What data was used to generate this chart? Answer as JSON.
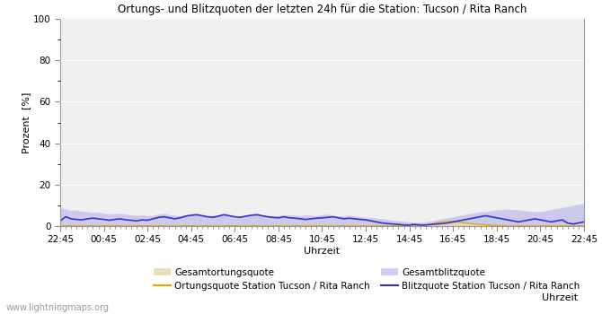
{
  "title": "Ortungs- und Blitzquoten der letzten 24h für die Station: Tucson / Rita Ranch",
  "xlabel": "Uhrzeit",
  "ylabel": "Prozent  [%]",
  "ylim": [
    0,
    100
  ],
  "yticks": [
    0,
    20,
    40,
    60,
    80,
    100
  ],
  "x_labels": [
    "22:45",
    "00:45",
    "02:45",
    "04:45",
    "06:45",
    "08:45",
    "10:45",
    "12:45",
    "14:45",
    "16:45",
    "18:45",
    "20:45",
    "22:45"
  ],
  "background_color": "#ffffff",
  "plot_bg_color": "#f0f0f0",
  "grid_color": "#ffffff",
  "watermark": "www.lightningmaps.org",
  "n_points": 97,
  "gesamtortungsquote": [
    0.2,
    0.2,
    0.2,
    0.2,
    0.2,
    0.2,
    0.2,
    0.2,
    0.2,
    0.2,
    0.2,
    0.2,
    0.2,
    0.2,
    0.2,
    0.2,
    0.2,
    0.2,
    0.2,
    0.2,
    0.2,
    0.2,
    0.2,
    0.2,
    0.2,
    0.2,
    0.2,
    0.2,
    0.2,
    0.2,
    0.2,
    0.2,
    0.2,
    0.2,
    0.2,
    0.2,
    0.2,
    0.2,
    0.2,
    0.2,
    0.2,
    0.2,
    0.2,
    0.2,
    0.2,
    0.2,
    0.2,
    0.2,
    0.2,
    0.2,
    0.2,
    0.2,
    0.2,
    0.2,
    0.2,
    0.2,
    0.2,
    0.2,
    0.2,
    0.2,
    0.2,
    0.2,
    0.2,
    0.2,
    0.2,
    0.2,
    0.2,
    0.5,
    1.2,
    1.8,
    2.2,
    2.5,
    2.5,
    2.2,
    1.8,
    1.5,
    1.2,
    1.0,
    0.8,
    0.6,
    0.4,
    0.3,
    0.2,
    0.2,
    0.2,
    0.2,
    0.2,
    0.2,
    0.2,
    0.2,
    0.2,
    0.2,
    0.2,
    0.2,
    0.2,
    0.2,
    0.2
  ],
  "ortungsquote_station": [
    0.1,
    0.1,
    0.1,
    0.1,
    0.1,
    0.1,
    0.1,
    0.1,
    0.1,
    0.1,
    0.1,
    0.1,
    0.1,
    0.1,
    0.1,
    0.1,
    0.1,
    0.1,
    0.1,
    0.1,
    0.1,
    0.1,
    0.1,
    0.1,
    0.1,
    0.1,
    0.1,
    0.1,
    0.1,
    0.1,
    0.1,
    0.1,
    0.1,
    0.1,
    0.1,
    0.1,
    0.1,
    0.1,
    0.1,
    0.1,
    0.1,
    0.1,
    0.1,
    0.1,
    0.1,
    0.1,
    0.1,
    0.1,
    0.1,
    0.1,
    0.1,
    0.1,
    0.1,
    0.1,
    0.1,
    0.1,
    0.1,
    0.1,
    0.1,
    0.1,
    0.1,
    0.1,
    0.1,
    0.1,
    0.1,
    0.1,
    0.1,
    0.4,
    1.0,
    1.5,
    1.9,
    2.2,
    2.2,
    2.0,
    1.6,
    1.3,
    1.0,
    0.8,
    0.6,
    0.4,
    0.3,
    0.2,
    0.1,
    0.1,
    0.1,
    0.1,
    0.1,
    0.1,
    0.1,
    0.1,
    0.1,
    0.1,
    0.1,
    0.1,
    0.1,
    0.1,
    0.1
  ],
  "gesamtblitzquote": [
    9.0,
    8.2,
    7.5,
    7.8,
    7.2,
    7.0,
    6.5,
    6.8,
    6.2,
    5.8,
    6.0,
    6.2,
    5.8,
    5.5,
    5.2,
    5.5,
    5.0,
    5.2,
    5.8,
    6.2,
    5.5,
    5.2,
    5.0,
    5.5,
    5.8,
    6.0,
    5.5,
    5.0,
    5.2,
    5.5,
    5.8,
    5.2,
    4.8,
    4.5,
    5.0,
    5.5,
    5.8,
    5.5,
    5.0,
    4.8,
    5.0,
    5.5,
    5.5,
    5.2,
    5.0,
    5.5,
    5.2,
    5.0,
    5.5,
    5.8,
    5.2,
    4.8,
    5.0,
    5.2,
    4.8,
    4.5,
    4.2,
    4.0,
    3.8,
    3.5,
    3.2,
    2.8,
    2.5,
    2.2,
    2.0,
    1.8,
    1.8,
    2.0,
    2.5,
    3.0,
    3.5,
    4.0,
    4.5,
    5.0,
    5.5,
    6.0,
    6.5,
    7.0,
    7.0,
    7.5,
    7.8,
    8.0,
    8.2,
    8.0,
    7.8,
    7.5,
    7.2,
    7.0,
    7.0,
    7.5,
    8.0,
    8.5,
    9.0,
    9.5,
    10.0,
    10.5,
    11.0
  ],
  "blitzquote_station": [
    2.5,
    4.5,
    3.5,
    3.2,
    3.0,
    3.5,
    3.8,
    3.5,
    3.2,
    2.8,
    3.2,
    3.5,
    3.0,
    2.8,
    2.5,
    3.0,
    2.8,
    3.5,
    4.2,
    4.5,
    4.0,
    3.5,
    4.0,
    4.8,
    5.2,
    5.5,
    5.0,
    4.5,
    4.2,
    4.8,
    5.5,
    5.0,
    4.5,
    4.2,
    4.8,
    5.2,
    5.5,
    5.0,
    4.5,
    4.2,
    4.0,
    4.5,
    4.0,
    3.8,
    3.5,
    3.2,
    3.5,
    3.8,
    4.0,
    4.2,
    4.5,
    4.0,
    3.5,
    3.8,
    3.5,
    3.2,
    3.0,
    2.5,
    2.0,
    1.5,
    1.2,
    1.0,
    0.8,
    0.5,
    0.5,
    0.8,
    0.5,
    0.5,
    0.8,
    1.0,
    1.2,
    1.5,
    2.0,
    2.5,
    3.0,
    3.5,
    4.0,
    4.5,
    5.0,
    4.5,
    4.0,
    3.5,
    3.0,
    2.5,
    2.0,
    2.5,
    3.0,
    3.5,
    3.0,
    2.5,
    2.0,
    2.5,
    3.0,
    1.5,
    1.0,
    1.5,
    2.0
  ]
}
